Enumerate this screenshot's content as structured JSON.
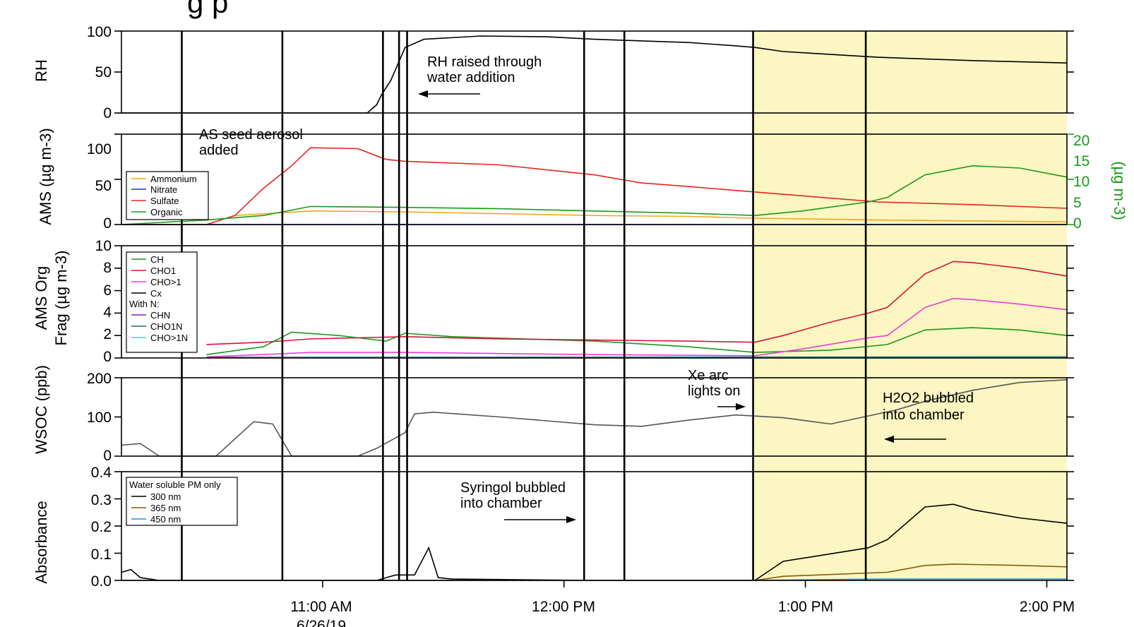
{
  "title_fragment": "g   p",
  "colors": {
    "highlight": "#fbf6c2",
    "black": "#000000",
    "orange": "#f5a623",
    "blue": "#1f2bd6",
    "red": "#e8231f",
    "green": "#1a9a1a",
    "crimson": "#d4143c",
    "magenta": "#f23bd6",
    "gray": "#555555",
    "purple": "#7a22c9",
    "teal": "#1a6b6b",
    "cyan": "#19e3e3",
    "brown": "#8a5a0a",
    "skyblue": "#2a8fd6",
    "right_axis": "#1a9a1a"
  },
  "chart_data": {
    "type": "line",
    "time_axis": {
      "ticks": [
        "11:00 AM",
        "12:00 PM",
        "1:00 PM",
        "2:00 PM"
      ],
      "date_label": "6/26/19",
      "range": [
        "10:10",
        "2:05 PM"
      ]
    },
    "vertical_event_lines": [
      "10:25",
      "10:50",
      "11:15",
      "11:19",
      "11:21",
      "12:05",
      "12:15",
      "12:47",
      "1:15"
    ],
    "highlight_span": [
      "12:47",
      "2:05 PM"
    ],
    "panels": [
      {
        "id": "rh",
        "ylabel": "RH",
        "ylim": [
          0,
          100
        ],
        "yticks": [
          "0",
          "50",
          "100"
        ],
        "series": [
          {
            "color": "black",
            "x": [
              0,
              0.26,
              0.27,
              0.275,
              0.285,
              0.3,
              0.32,
              0.38,
              0.45,
              0.5,
              0.55,
              0.6,
              0.65,
              0.67,
              0.7,
              0.8,
              0.9,
              1.0
            ],
            "y": [
              0,
              0,
              10,
              22,
              40,
              80,
              90,
              94,
              93,
              90,
              88,
              86,
              82,
              80,
              75,
              68,
              64,
              61
            ]
          }
        ],
        "annotations": [
          {
            "text": [
              "RH raised through",
              "water addition"
            ],
            "arrow": "left"
          }
        ]
      },
      {
        "id": "ams",
        "ylabel": "AMS (µg m-3)",
        "ylim": [
          0,
          100
        ],
        "yticks": [
          "0",
          "50",
          "100"
        ],
        "right_ylabel": "(µg m-3)",
        "right_ylim": [
          0,
          20
        ],
        "right_yticks": [
          "0",
          "5",
          "10",
          "15",
          "20"
        ],
        "legend": [
          "Ammonium",
          "Nitrate",
          "Sulfate",
          "Organic"
        ],
        "series": [
          {
            "name": "Ammonium",
            "color": "orange",
            "x": [
              0,
              0.09,
              0.12,
              0.2,
              0.3,
              0.4,
              0.5,
              0.6,
              0.67,
              0.8,
              0.9,
              1.0
            ],
            "y": [
              0,
              0,
              10,
              15,
              14,
              12,
              10,
              9,
              7,
              5,
              4,
              3
            ]
          },
          {
            "name": "Nitrate",
            "color": "blue",
            "x": [
              0,
              1.0
            ],
            "y": [
              0,
              0
            ]
          },
          {
            "name": "Sulfate",
            "color": "red",
            "x": [
              0,
              0.09,
              0.12,
              0.15,
              0.18,
              0.2,
              0.25,
              0.28,
              0.3,
              0.4,
              0.5,
              0.55,
              0.6,
              0.67,
              0.8,
              0.9,
              1.0
            ],
            "y": [
              0,
              0,
              10,
              40,
              65,
              85,
              84,
              72,
              70,
              66,
              55,
              46,
              42,
              36,
              25,
              22,
              18
            ]
          },
          {
            "name": "Organic",
            "color": "green",
            "axis": "right",
            "x": [
              0,
              0.09,
              0.15,
              0.2,
              0.3,
              0.4,
              0.5,
              0.6,
              0.67,
              0.72,
              0.79,
              0.81,
              0.85,
              0.9,
              0.95,
              1.0
            ],
            "y": [
              0,
              1,
              2,
              4,
              3.8,
              3.5,
              3,
              2.5,
              2,
              3,
              5,
              6,
              11,
              13,
              12.5,
              10.5
            ]
          }
        ],
        "annotations": [
          {
            "text": [
              "AS seed aerosol",
              "added"
            ]
          }
        ]
      },
      {
        "id": "frag",
        "ylabel": [
          "AMS Org",
          "Frag (µg m-3)"
        ],
        "ylim": [
          0,
          10
        ],
        "yticks": [
          "0",
          "2",
          "4",
          "6",
          "8",
          "10"
        ],
        "legend": [
          "CH",
          "CHO1",
          "CHO>1",
          "Cx",
          "With N:",
          "CHN",
          "CHO1N",
          "CHO>1N"
        ],
        "series": [
          {
            "name": "CH",
            "color": "green",
            "x": [
              0.09,
              0.15,
              0.18,
              0.23,
              0.28,
              0.3,
              0.35,
              0.5,
              0.6,
              0.67,
              0.75,
              0.81,
              0.85,
              0.9,
              0.95,
              1.0
            ],
            "y": [
              0.3,
              1.0,
              2.3,
              2.0,
              1.5,
              2.2,
              1.9,
              1.5,
              1.0,
              0.5,
              0.7,
              1.2,
              2.5,
              2.7,
              2.5,
              2.0
            ]
          },
          {
            "name": "CHO1",
            "color": "crimson",
            "x": [
              0.09,
              0.15,
              0.2,
              0.3,
              0.4,
              0.5,
              0.6,
              0.67,
              0.7,
              0.75,
              0.79,
              0.81,
              0.85,
              0.88,
              0.9,
              0.95,
              1.0
            ],
            "y": [
              1.2,
              1.4,
              1.7,
              1.9,
              1.7,
              1.6,
              1.5,
              1.4,
              2.0,
              3.2,
              4.0,
              4.5,
              7.5,
              8.6,
              8.5,
              8.0,
              7.3
            ]
          },
          {
            "name": "CHO>1",
            "color": "magenta",
            "x": [
              0.09,
              0.15,
              0.2,
              0.3,
              0.5,
              0.67,
              0.72,
              0.79,
              0.81,
              0.85,
              0.88,
              0.9,
              0.95,
              1.0
            ],
            "y": [
              0.1,
              0.3,
              0.5,
              0.5,
              0.3,
              0.2,
              0.8,
              1.8,
              2.0,
              4.5,
              5.3,
              5.2,
              4.8,
              4.3
            ]
          },
          {
            "name": "Cx",
            "color": "black",
            "x": [
              0.09,
              1.0
            ],
            "y": [
              0.05,
              0.05
            ]
          },
          {
            "name": "CHN",
            "color": "purple",
            "x": [
              0.09,
              1.0
            ],
            "y": [
              0.05,
              0.05
            ]
          },
          {
            "name": "CHO1N",
            "color": "teal",
            "x": [
              0.09,
              1.0
            ],
            "y": [
              0.05,
              0.1
            ]
          },
          {
            "name": "CHO>1N",
            "color": "cyan",
            "x": [
              0.09,
              1.0
            ],
            "y": [
              0.02,
              0.02
            ]
          }
        ]
      },
      {
        "id": "wsoc",
        "ylabel": "WSOC (ppb)",
        "ylim": [
          0,
          200
        ],
        "yticks": [
          "0",
          "100",
          "200"
        ],
        "series": [
          {
            "color": "gray",
            "x": [
              0,
              0.02,
              0.04,
              0.07,
              0.1,
              0.14,
              0.16,
              0.18,
              0.25,
              0.27,
              0.3,
              0.31,
              0.33,
              0.4,
              0.5,
              0.55,
              0.6,
              0.65,
              0.7,
              0.75,
              0.82,
              0.85,
              0.9,
              0.95,
              1.0
            ],
            "y": [
              28,
              32,
              0,
              0,
              0,
              88,
              82,
              0,
              0,
              20,
              60,
              108,
              112,
              100,
              80,
              76,
              92,
              105,
              98,
              82,
              118,
              140,
              168,
              188,
              195
            ]
          }
        ],
        "annotations": [
          {
            "text": [
              "Xe arc",
              "lights on"
            ],
            "arrow": "right"
          },
          {
            "text": [
              "H2O2 bubbled",
              "into chamber"
            ],
            "arrow": "left"
          }
        ]
      },
      {
        "id": "abs",
        "ylabel": "Absorbance",
        "ylim": [
          0,
          0.4
        ],
        "yticks": [
          "0.0",
          "0.1",
          "0.2",
          "0.3",
          "0.4"
        ],
        "legend": [
          "Water soluble PM only",
          "300 nm",
          "365 nm",
          "450 nm"
        ],
        "series": [
          {
            "name": "300 nm",
            "color": "black",
            "x": [
              0,
              0.01,
              0.02,
              0.04,
              0.27,
              0.29,
              0.31,
              0.325,
              0.335,
              0.35,
              0.5,
              0.67,
              0.7,
              0.79,
              0.81,
              0.85,
              0.88,
              0.9,
              0.95,
              1.0
            ],
            "y": [
              0.03,
              0.04,
              0.01,
              0,
              0,
              0.02,
              0.02,
              0.12,
              0.01,
              0.005,
              0,
              0,
              0.07,
              0.12,
              0.15,
              0.27,
              0.28,
              0.26,
              0.23,
              0.21
            ]
          },
          {
            "name": "365 nm",
            "color": "brown",
            "x": [
              0,
              0.67,
              0.7,
              0.81,
              0.85,
              0.88,
              0.95,
              1.0
            ],
            "y": [
              0,
              0,
              0.015,
              0.03,
              0.055,
              0.06,
              0.055,
              0.05
            ]
          },
          {
            "name": "450 nm",
            "color": "skyblue",
            "x": [
              0,
              0.67,
              0.8,
              1.0
            ],
            "y": [
              0,
              0,
              0.005,
              0.005
            ]
          }
        ],
        "annotations": [
          {
            "text": [
              "Syringol bubbled",
              "into chamber"
            ],
            "arrow": "right"
          }
        ]
      }
    ]
  }
}
